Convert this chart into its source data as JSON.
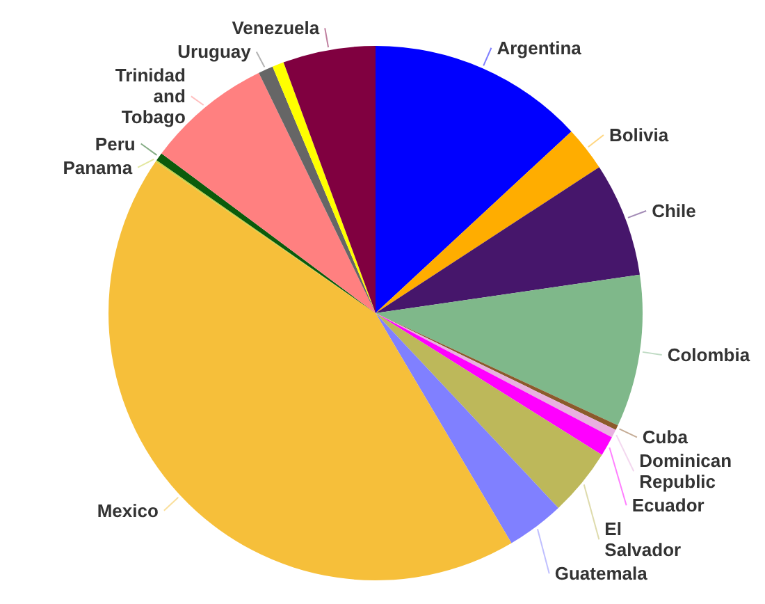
{
  "chart_data": {
    "type": "pie",
    "categories": [
      "Argentina",
      "Bolivia",
      "Chile",
      "Colombia",
      "Cuba",
      "Dominican Republic",
      "Ecuador",
      "El Salvador",
      "Guatemala",
      "Mexico",
      "Panama",
      "Peru",
      "Trinidad and Tobago",
      "Uruguay",
      null,
      "Venezuela"
    ],
    "values": [
      13.1,
      2.7,
      6.9,
      9.2,
      0.3,
      0.5,
      1.2,
      4.1,
      3.5,
      43.1,
      0.1,
      0.5,
      7.6,
      0.9,
      0.7,
      5.6
    ],
    "colors": [
      "#0000ff",
      "#ffad00",
      "#46166b",
      "#7fb88a",
      "#8b5a2b",
      "#e8b0e0",
      "#ff00ff",
      "#bdb85a",
      "#8080ff",
      "#f6bf3a",
      "#c8d040",
      "#0b5b0b",
      "#ff8080",
      "#666666",
      "#ffff00",
      "#800040"
    ]
  }
}
